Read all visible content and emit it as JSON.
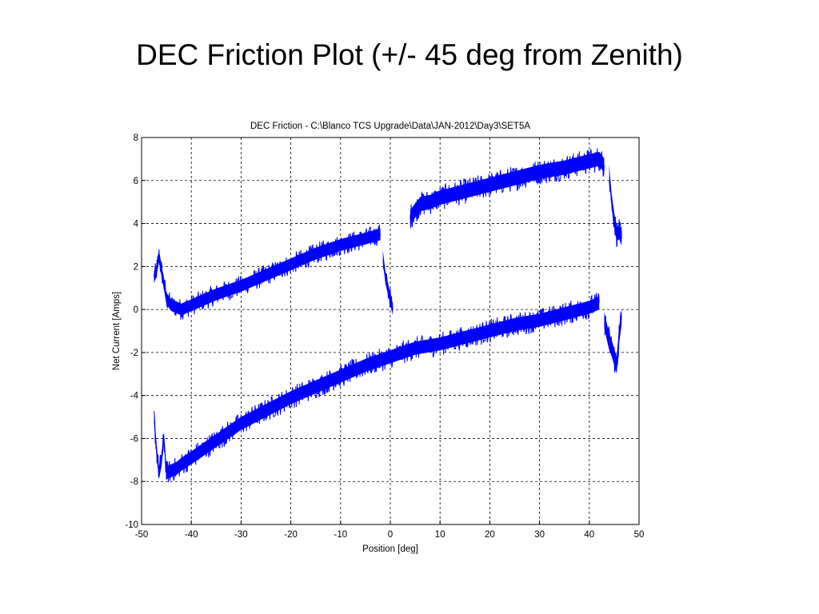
{
  "slide": {
    "title": "DEC Friction Plot (+/- 45 deg from Zenith)"
  },
  "chart_data": {
    "type": "line",
    "title": "DEC Friction - C:\\Blanco TCS Upgrade\\Data\\JAN-2012\\Day3\\SET5A",
    "xlabel": "Position [deg]",
    "ylabel": "Net Current [Amps]",
    "xlim": [
      -50,
      50
    ],
    "ylim": [
      -10,
      8
    ],
    "xticks": [
      -50,
      -40,
      -30,
      -20,
      -10,
      0,
      10,
      20,
      30,
      40,
      50
    ],
    "yticks": [
      -10,
      -8,
      -6,
      -4,
      -2,
      0,
      2,
      4,
      6,
      8
    ],
    "grid": true,
    "line_color": "#0000ff",
    "series": [
      {
        "x": [
          -47.5,
          -47,
          -46.5,
          -46,
          -45.5,
          -45,
          -44,
          -43,
          -42,
          -40,
          -35,
          -30,
          -25,
          -20,
          -15,
          -10,
          -5,
          -2
        ],
        "y": [
          1.5,
          1.8,
          2.5,
          1.8,
          1.2,
          0.5,
          0.2,
          0.1,
          0.0,
          0.2,
          0.7,
          1.1,
          1.6,
          2.1,
          2.6,
          3.0,
          3.3,
          3.5
        ],
        "spread": 0.5
      },
      {
        "x": [
          -1.5,
          -1,
          -0.5,
          0,
          0.5
        ],
        "y": [
          2.5,
          1.5,
          1.0,
          0.5,
          0.0
        ],
        "spread": 0.5
      },
      {
        "x": [
          4,
          5,
          6,
          8,
          10,
          15,
          20,
          25,
          30,
          35,
          40,
          42,
          43
        ],
        "y": [
          4.3,
          4.6,
          4.9,
          5.0,
          5.2,
          5.5,
          5.8,
          6.1,
          6.4,
          6.6,
          6.9,
          7.0,
          6.7
        ],
        "spread": 0.6
      },
      {
        "x": [
          44,
          44.5,
          45,
          45.5,
          46,
          46.5
        ],
        "y": [
          6.4,
          5.0,
          4.2,
          3.5,
          3.6,
          3.3
        ],
        "spread": 0.6
      },
      {
        "x": [
          -47.5,
          -47,
          -46.5,
          -46,
          -45.5,
          -45,
          -44,
          -43,
          -42,
          -40,
          -35,
          -30,
          -25,
          -20,
          -15,
          -10,
          -5,
          0,
          5,
          10,
          15,
          20,
          25,
          30,
          35,
          40,
          42
        ],
        "y": [
          -5.0,
          -6.5,
          -7.6,
          -7.0,
          -6.0,
          -7.6,
          -7.5,
          -7.4,
          -7.2,
          -6.9,
          -6.1,
          -5.3,
          -4.7,
          -4.1,
          -3.6,
          -3.1,
          -2.6,
          -2.2,
          -1.8,
          -1.6,
          -1.3,
          -1.0,
          -0.7,
          -0.5,
          -0.2,
          0.1,
          0.3
        ],
        "spread": 0.55
      },
      {
        "x": [
          43,
          44,
          44.5,
          45,
          45.5,
          46,
          46.5
        ],
        "y": [
          -0.5,
          -1.5,
          -1.8,
          -2.2,
          -2.6,
          -1.2,
          -0.3
        ],
        "spread": 0.7
      }
    ]
  }
}
